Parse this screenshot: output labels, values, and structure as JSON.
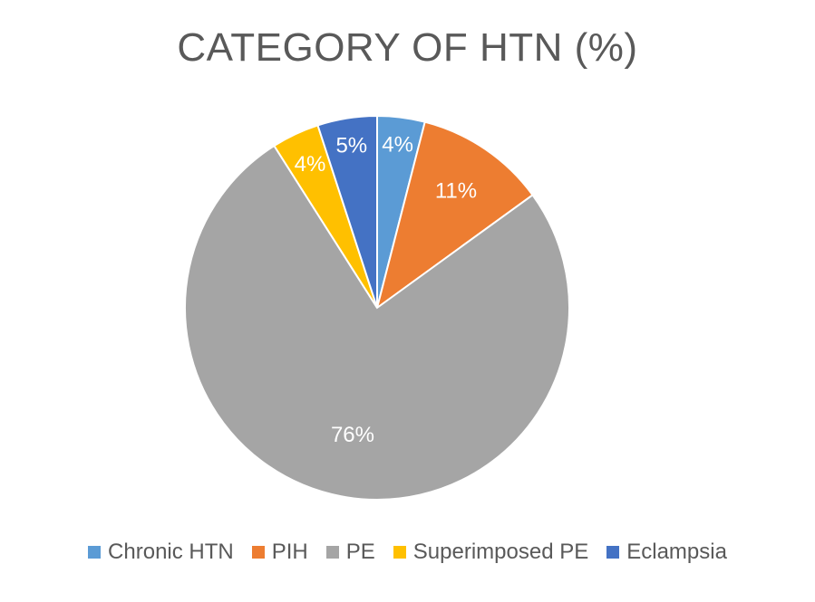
{
  "chart_data": {
    "type": "pie",
    "title": "CATEGORY OF HTN (%)",
    "legend_position": "bottom",
    "slices": [
      {
        "name": "Chronic HTN",
        "value": 4,
        "label": "4%",
        "color": "#5b9bd5"
      },
      {
        "name": "PIH",
        "value": 11,
        "label": "11%",
        "color": "#ed7d31"
      },
      {
        "name": "PE",
        "value": 76,
        "label": "76%",
        "color": "#a5a5a5"
      },
      {
        "name": "Superimposed PE",
        "value": 4,
        "label": "4%",
        "color": "#ffc000"
      },
      {
        "name": "Eclampsia",
        "value": 5,
        "label": "5%",
        "color": "#4472c4"
      }
    ]
  }
}
